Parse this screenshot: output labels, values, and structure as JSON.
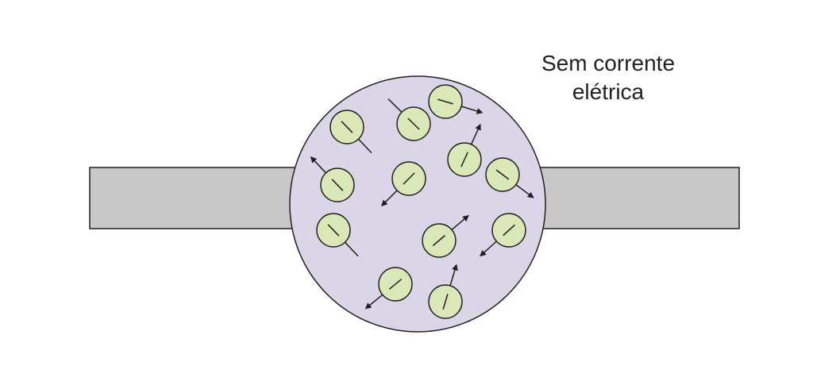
{
  "caption": {
    "line1": "Sem corrente",
    "line2": "elétrica"
  },
  "colors": {
    "bar_fill": "#c8c8c8",
    "disk_fill": "#dad6e8",
    "particle_fill": "#d9e8b6",
    "stroke": "#231f20"
  },
  "icons": {
    "particle": "charged-particle-icon",
    "arrow": "velocity-arrow-icon"
  }
}
